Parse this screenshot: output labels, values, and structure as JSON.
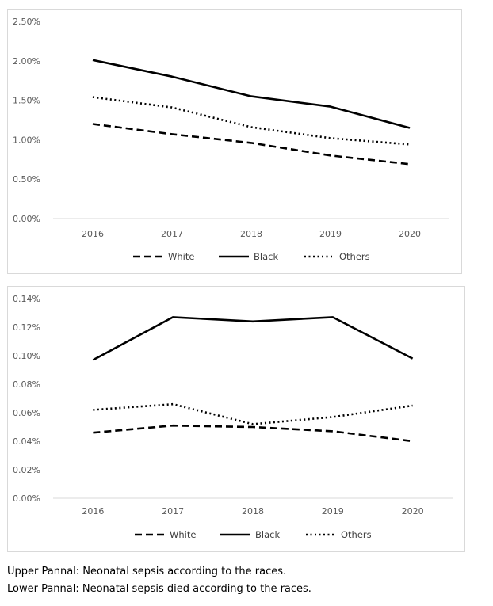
{
  "chart_data": [
    {
      "type": "line",
      "categories": [
        "2016",
        "2017",
        "2018",
        "2019",
        "2020"
      ],
      "ylim": [
        0,
        0.025
      ],
      "yticks": [
        "0.00%",
        "0.50%",
        "1.00%",
        "1.50%",
        "2.00%",
        "2.50%"
      ],
      "ytick_values": [
        0,
        0.005,
        0.01,
        0.015,
        0.02,
        0.025
      ],
      "series": [
        {
          "name": "White",
          "style": "dashed",
          "values": [
            0.012,
            0.0107,
            0.0096,
            0.008,
            0.0069
          ]
        },
        {
          "name": "Black",
          "style": "solid",
          "values": [
            0.0201,
            0.018,
            0.0155,
            0.0142,
            0.0115
          ]
        },
        {
          "name": "Others",
          "style": "dotted",
          "values": [
            0.0154,
            0.0141,
            0.0116,
            0.0102,
            0.0094
          ]
        }
      ],
      "legend": "bottom",
      "grid": false,
      "line_color": "#000000"
    },
    {
      "type": "line",
      "categories": [
        "2016",
        "2017",
        "2018",
        "2019",
        "2020"
      ],
      "ylim": [
        0,
        0.0014
      ],
      "yticks": [
        "0.00%",
        "0.02%",
        "0.04%",
        "0.06%",
        "0.08%",
        "0.10%",
        "0.12%",
        "0.14%"
      ],
      "ytick_values": [
        0,
        0.0002,
        0.0004,
        0.0006,
        0.0008,
        0.001,
        0.0012,
        0.0014
      ],
      "series": [
        {
          "name": "White",
          "style": "dashed",
          "values": [
            0.00046,
            0.00051,
            0.0005,
            0.00047,
            0.0004
          ]
        },
        {
          "name": "Black",
          "style": "solid",
          "values": [
            0.00097,
            0.00127,
            0.00124,
            0.00127,
            0.00098
          ]
        },
        {
          "name": "Others",
          "style": "dotted",
          "values": [
            0.00062,
            0.00066,
            0.00052,
            0.00057,
            0.00065
          ]
        }
      ],
      "legend": "bottom",
      "grid": false,
      "line_color": "#000000"
    }
  ],
  "captions": {
    "upper": "Upper Pannal: Neonatal sepsis according to the races.",
    "lower": "Lower Pannal: Neonatal sepsis died according to the races."
  }
}
